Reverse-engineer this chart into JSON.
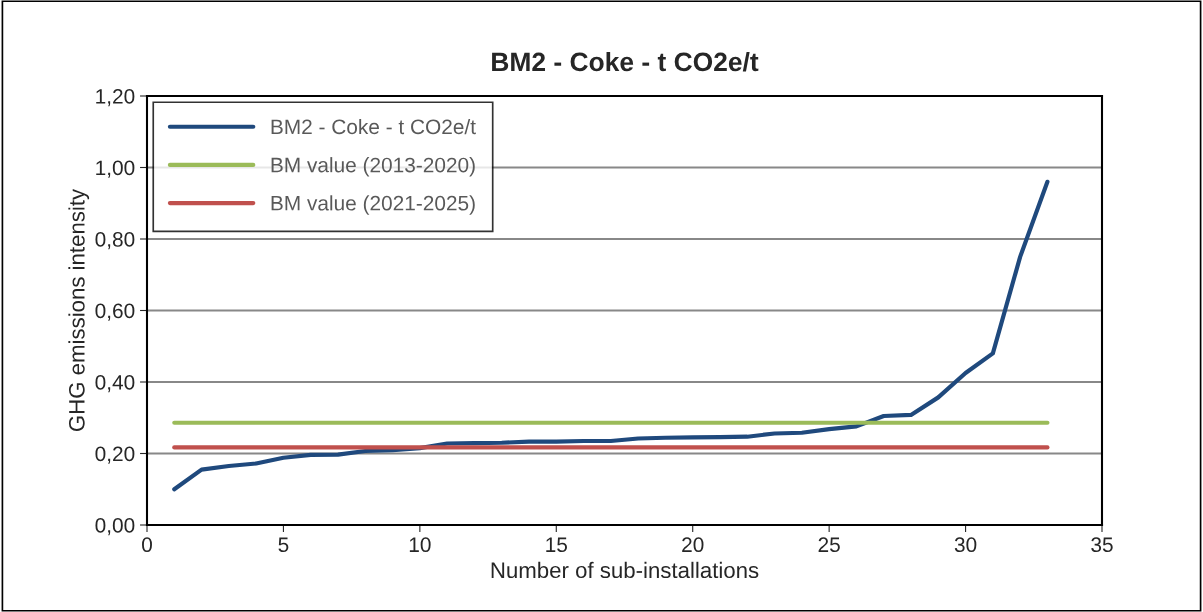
{
  "chart_data": {
    "type": "line",
    "title": "BM2 - Coke - t CO2e/t",
    "xlabel": "Number of sub-installations",
    "ylabel": "GHG emissions intensity",
    "series": [
      {
        "name": "BM2 - Coke - t CO2e/t",
        "color": "#1f497d",
        "x": [
          1,
          2,
          3,
          4,
          5,
          6,
          7,
          8,
          9,
          10,
          11,
          12,
          13,
          14,
          15,
          16,
          17,
          18,
          19,
          20,
          21,
          22,
          23,
          24,
          25,
          26,
          27,
          28,
          29,
          30,
          31,
          32,
          33
        ],
        "values": [
          0.1,
          0.155,
          0.165,
          0.172,
          0.188,
          0.196,
          0.197,
          0.207,
          0.209,
          0.215,
          0.228,
          0.229,
          0.23,
          0.233,
          0.233,
          0.235,
          0.235,
          0.242,
          0.244,
          0.245,
          0.246,
          0.247,
          0.256,
          0.258,
          0.268,
          0.276,
          0.305,
          0.308,
          0.357,
          0.425,
          0.48,
          0.75,
          0.96
        ]
      },
      {
        "name": "BM value (2013-2020)",
        "color": "#9bbb59",
        "x": [
          1,
          33
        ],
        "values": [
          0.286,
          0.286
        ]
      },
      {
        "name": "BM value (2021-2025)",
        "color": "#c0504d",
        "x": [
          1,
          33
        ],
        "values": [
          0.217,
          0.217
        ]
      }
    ],
    "xlim": [
      0,
      35
    ],
    "xticks": [
      0,
      5,
      10,
      15,
      20,
      25,
      30,
      35
    ],
    "ylim": [
      0,
      1.2
    ],
    "yticks": [
      {
        "value": 0,
        "label": "0,00"
      },
      {
        "value": 0.2,
        "label": "0,20"
      },
      {
        "value": 0.4,
        "label": "0,40"
      },
      {
        "value": 0.6,
        "label": "0,60"
      },
      {
        "value": 0.8,
        "label": "0,80"
      },
      {
        "value": 1.0,
        "label": "1,00"
      },
      {
        "value": 1.2,
        "label": "1,20"
      }
    ],
    "grid": "y",
    "legend": "top left",
    "marker": "none",
    "line_style": "solid"
  }
}
